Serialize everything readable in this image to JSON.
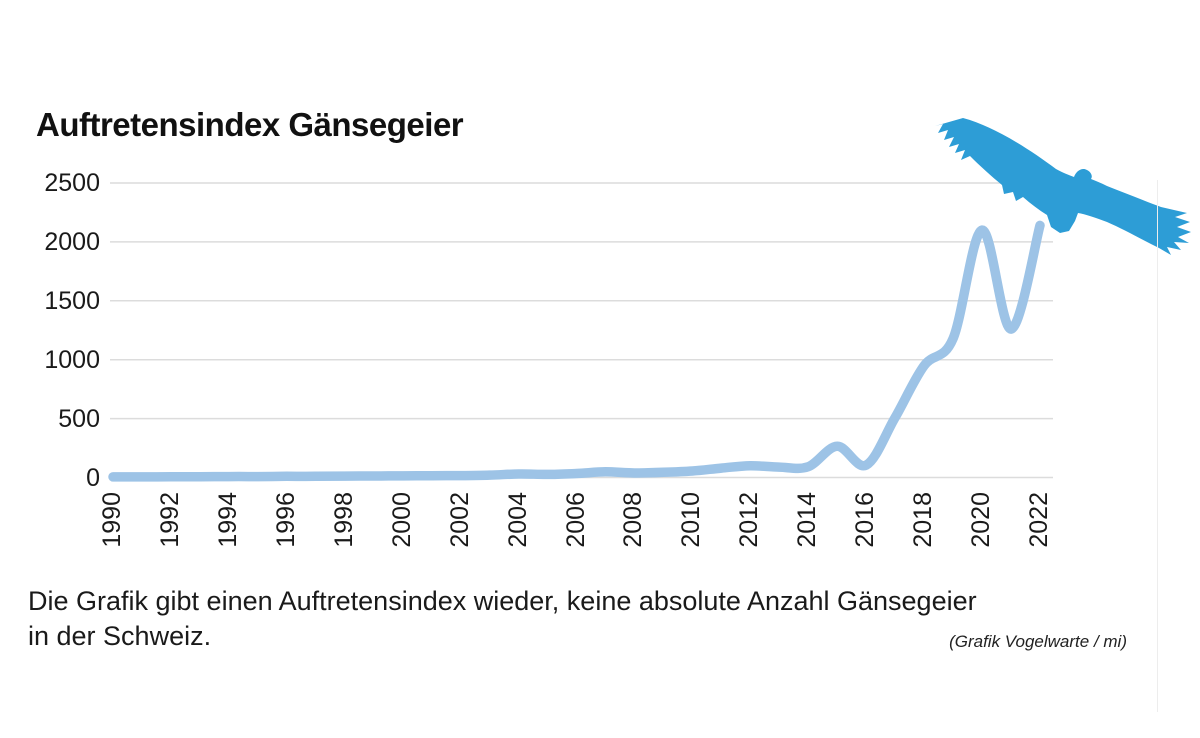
{
  "chart_data": {
    "type": "line",
    "title": "Auftretensindex Gänsegeier",
    "x": [
      1990,
      1991,
      1992,
      1993,
      1994,
      1995,
      1996,
      1997,
      1998,
      1999,
      2000,
      2001,
      2002,
      2003,
      2004,
      2005,
      2006,
      2007,
      2008,
      2009,
      2010,
      2011,
      2012,
      2013,
      2014,
      2015,
      2016,
      2017,
      2018,
      2019,
      2020,
      2021,
      2022
    ],
    "series": [
      {
        "name": "Auftretensindex Gänsegeier",
        "values": [
          5,
          5,
          6,
          7,
          8,
          8,
          10,
          10,
          12,
          13,
          14,
          15,
          16,
          20,
          30,
          26,
          34,
          48,
          38,
          44,
          55,
          80,
          100,
          88,
          92,
          265,
          105,
          510,
          950,
          1180,
          2100,
          1260,
          2140
        ]
      }
    ],
    "xticks": [
      1990,
      1992,
      1994,
      1996,
      1998,
      2000,
      2002,
      2004,
      2006,
      2008,
      2010,
      2012,
      2014,
      2016,
      2018,
      2020,
      2022
    ],
    "yticks": [
      0,
      500,
      1000,
      1500,
      2000,
      2500
    ],
    "xlim": [
      1990,
      2022
    ],
    "ylim": [
      0,
      2500
    ],
    "xlabel": "",
    "ylabel": "",
    "grid": "horizontal",
    "legend": "none",
    "line_color": "#9DC3E6",
    "grid_color": "#DCDCDC"
  },
  "caption": {
    "line1": "Die Grafik gibt einen Auftretensindex wieder, keine absolute Anzahl Gänsegeier",
    "line2": "in der Schweiz.",
    "credit": "(Grafik Vogelwarte / mi)"
  },
  "decoration": {
    "vulture_icon": "griffon-vulture-silhouette",
    "vulture_color": "#2D9DD6"
  }
}
